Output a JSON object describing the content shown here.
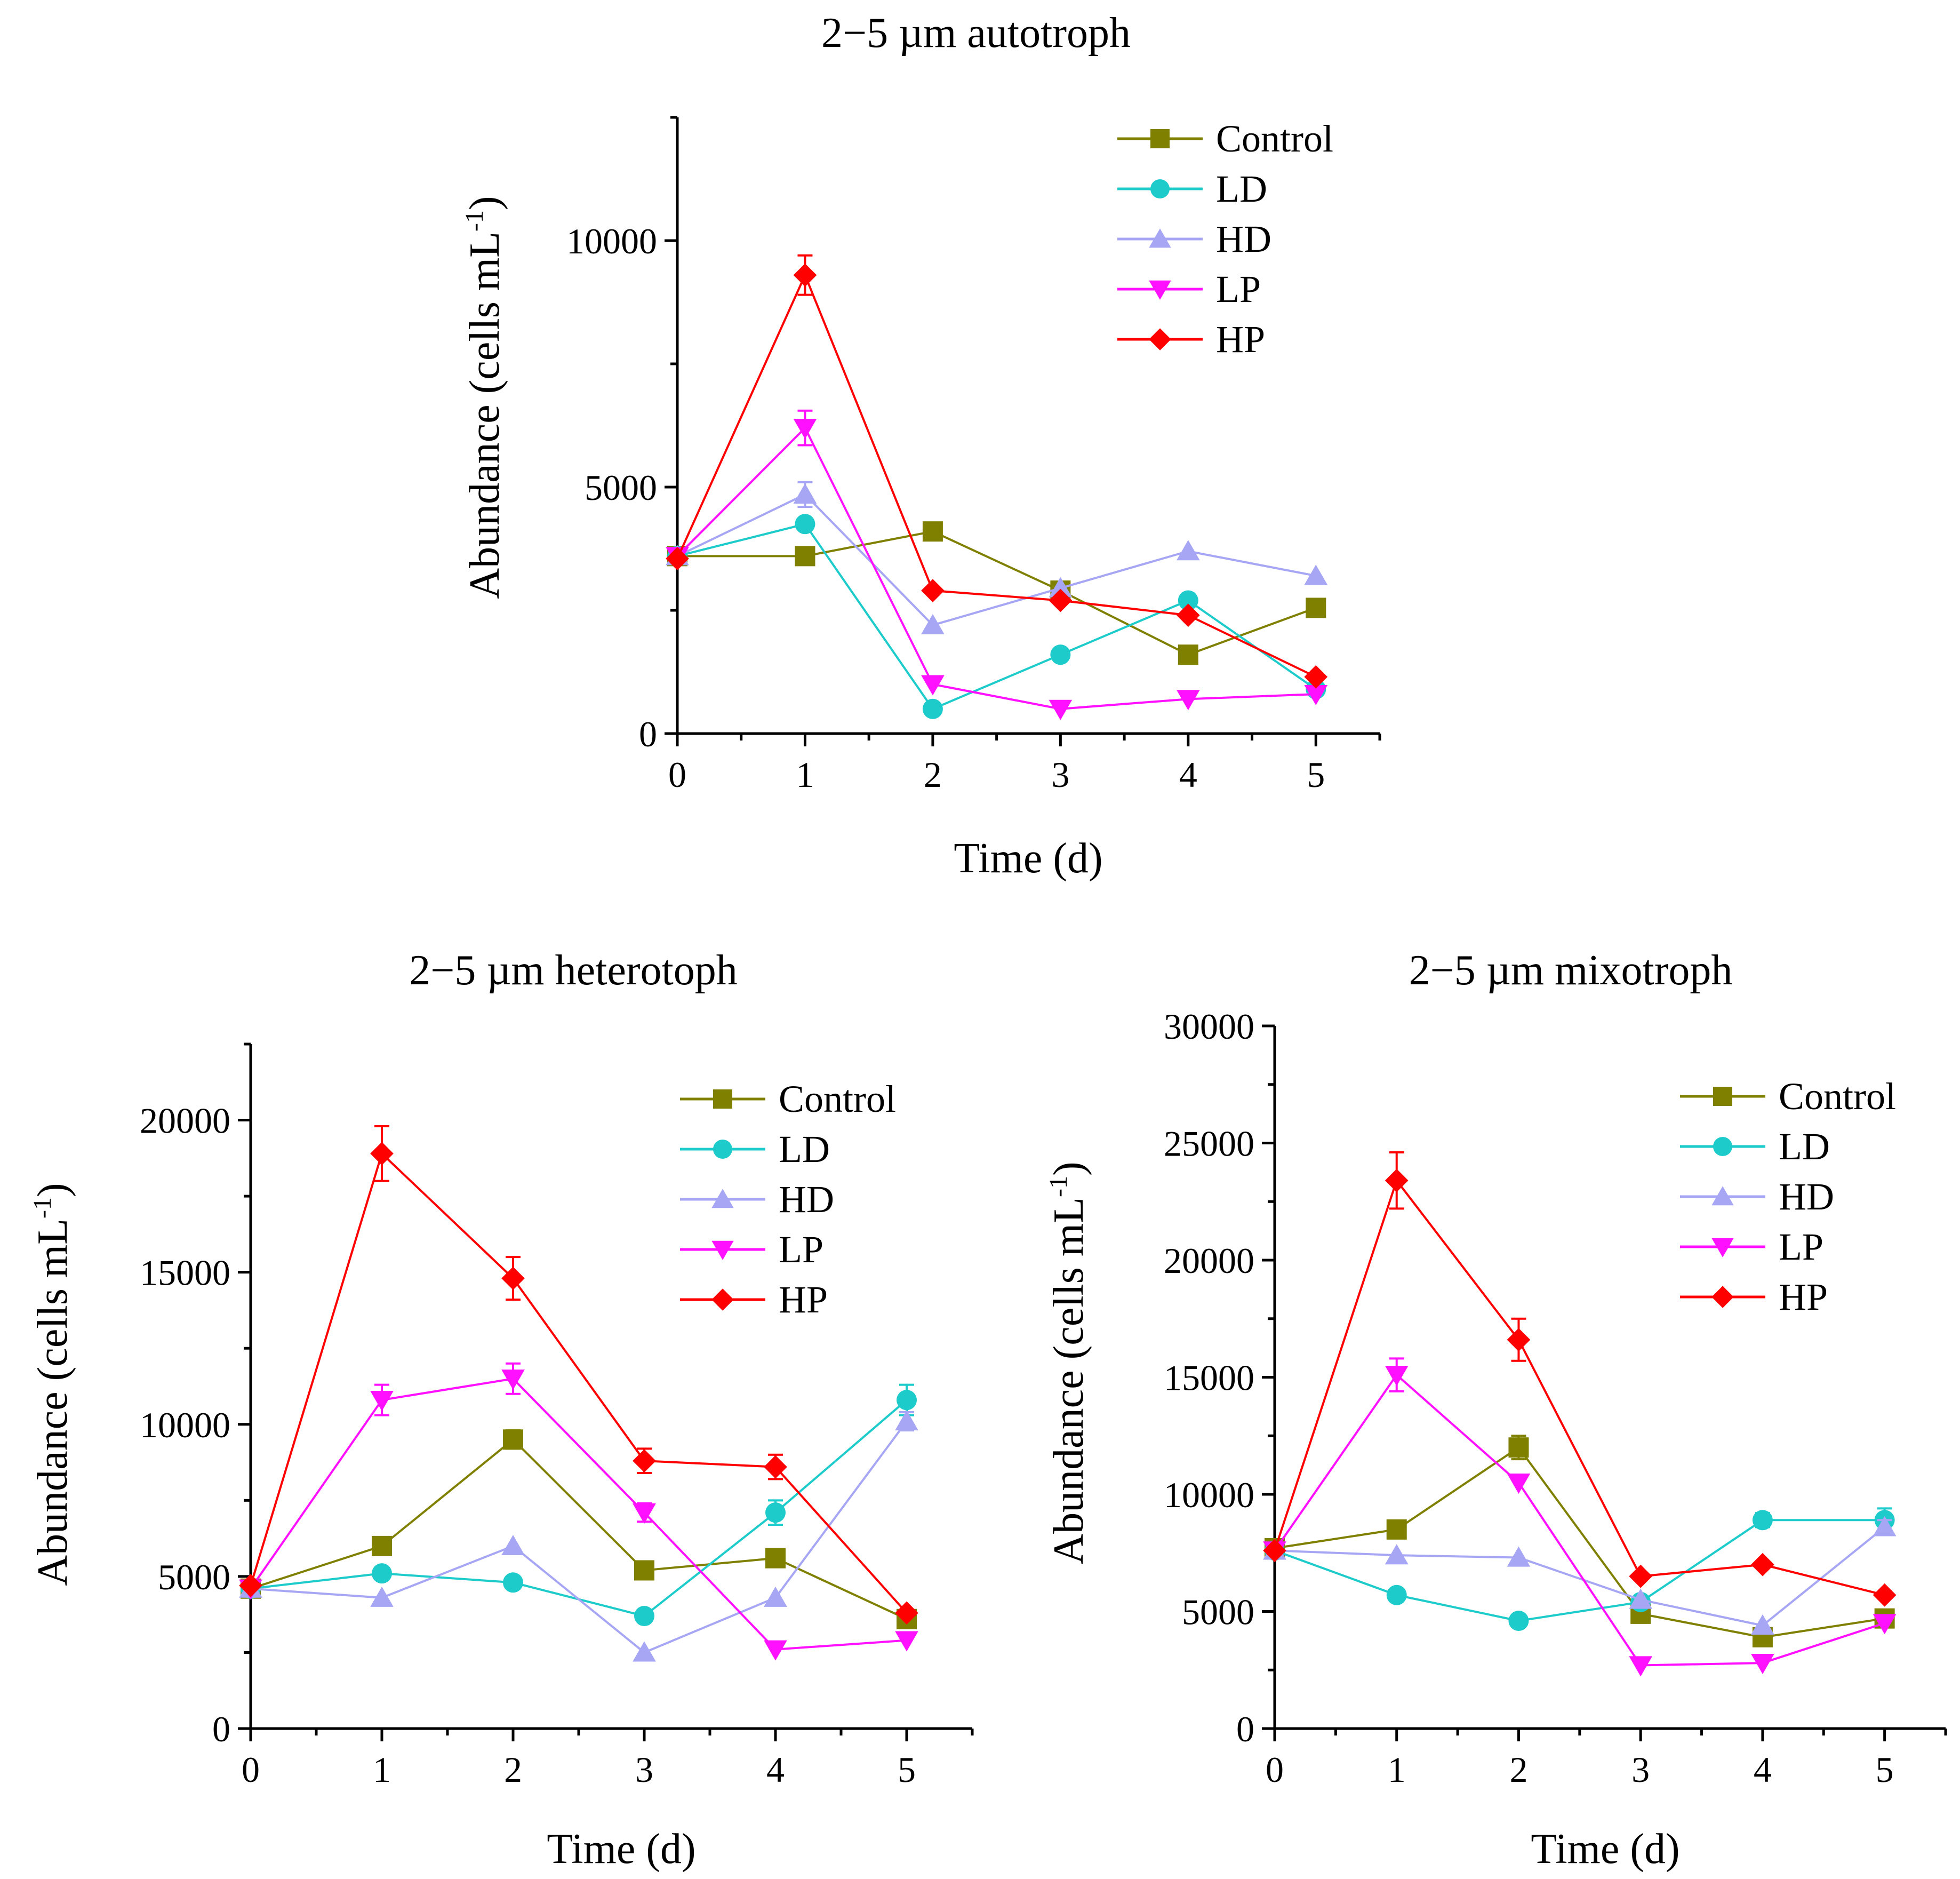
{
  "chart_data": [
    {
      "type": "line",
      "title": "2−5 µm autotroph",
      "xlabel": "Time (d)",
      "ylabel_main": "Abundance (cells mL",
      "ylabel_sup": "-1",
      "ylabel_close": ")",
      "x": [
        0,
        1,
        2,
        3,
        4,
        5
      ],
      "xlim": [
        0,
        5.5
      ],
      "ylim": [
        0,
        12500
      ],
      "yticks": [
        0,
        5000,
        10000
      ],
      "legend_position": "top-right",
      "series": [
        {
          "name": "Control",
          "color": "#808000",
          "marker": "square",
          "values": [
            3600,
            3600,
            4100,
            2900,
            1600,
            2550
          ],
          "errors": [
            0,
            0,
            0,
            0,
            0,
            0
          ]
        },
        {
          "name": "LD",
          "color": "#1ECBCB",
          "marker": "circle",
          "values": [
            3600,
            4250,
            500,
            1600,
            2700,
            900
          ],
          "errors": [
            0,
            0,
            0,
            0,
            0,
            0
          ]
        },
        {
          "name": "HD",
          "color": "#A6A6F4",
          "marker": "triangle-up",
          "values": [
            3600,
            4850,
            2200,
            2950,
            3700,
            3200
          ],
          "errors": [
            0,
            250,
            0,
            0,
            0,
            0
          ]
        },
        {
          "name": "LP",
          "color": "#FF10FF",
          "marker": "triangle-down",
          "values": [
            3600,
            6200,
            1000,
            500,
            700,
            800
          ],
          "errors": [
            0,
            350,
            0,
            0,
            0,
            0
          ]
        },
        {
          "name": "HP",
          "color": "#FF0000",
          "marker": "diamond",
          "values": [
            3550,
            9300,
            2900,
            2700,
            2400,
            1150
          ],
          "errors": [
            0,
            400,
            0,
            0,
            0,
            0
          ]
        }
      ]
    },
    {
      "type": "line",
      "title": "2−5 µm heterotoph",
      "xlabel": "Time (d)",
      "ylabel_main": "Abundance (cells mL",
      "ylabel_sup": "-1",
      "ylabel_close": ")",
      "x": [
        0,
        1,
        2,
        3,
        4,
        5
      ],
      "xlim": [
        0,
        5.5
      ],
      "ylim": [
        0,
        22500
      ],
      "yticks": [
        0,
        5000,
        10000,
        15000,
        20000
      ],
      "legend_position": "top-right",
      "series": [
        {
          "name": "Control",
          "color": "#808000",
          "marker": "square",
          "values": [
            4600,
            6000,
            9500,
            5200,
            5600,
            3600
          ],
          "errors": [
            0,
            0,
            300,
            0,
            0,
            0
          ]
        },
        {
          "name": "LD",
          "color": "#1ECBCB",
          "marker": "circle",
          "values": [
            4600,
            5100,
            4800,
            3700,
            7100,
            10800
          ],
          "errors": [
            0,
            0,
            0,
            0,
            400,
            500
          ]
        },
        {
          "name": "HD",
          "color": "#A6A6F4",
          "marker": "triangle-up",
          "values": [
            4600,
            4300,
            6000,
            2500,
            4300,
            10100
          ],
          "errors": [
            0,
            0,
            0,
            0,
            0,
            300
          ]
        },
        {
          "name": "LP",
          "color": "#FF10FF",
          "marker": "triangle-down",
          "values": [
            4600,
            10800,
            11500,
            7100,
            2600,
            2900
          ],
          "errors": [
            0,
            500,
            500,
            300,
            0,
            0
          ]
        },
        {
          "name": "HP",
          "color": "#FF0000",
          "marker": "diamond",
          "values": [
            4700,
            18900,
            14800,
            8800,
            8600,
            3800
          ],
          "errors": [
            0,
            900,
            700,
            400,
            400,
            0
          ]
        }
      ]
    },
    {
      "type": "line",
      "title": "2−5 µm mixotroph",
      "xlabel": "Time (d)",
      "ylabel_main": "Abundance (cells mL",
      "ylabel_sup": "-1",
      "ylabel_close": ")",
      "x": [
        0,
        1,
        2,
        3,
        4,
        5
      ],
      "xlim": [
        0,
        5.5
      ],
      "ylim": [
        0,
        30000
      ],
      "yticks": [
        0,
        5000,
        10000,
        15000,
        20000,
        25000,
        30000
      ],
      "legend_position": "top-right",
      "series": [
        {
          "name": "Control",
          "color": "#808000",
          "marker": "square",
          "values": [
            7700,
            8500,
            12000,
            4900,
            3900,
            4700
          ],
          "errors": [
            0,
            0,
            500,
            0,
            0,
            0
          ]
        },
        {
          "name": "LD",
          "color": "#1ECBCB",
          "marker": "circle",
          "values": [
            7600,
            5700,
            4600,
            5400,
            8900,
            8900
          ],
          "errors": [
            0,
            0,
            0,
            0,
            300,
            500
          ]
        },
        {
          "name": "HD",
          "color": "#A6A6F4",
          "marker": "triangle-up",
          "values": [
            7600,
            7400,
            7300,
            5500,
            4400,
            8600
          ],
          "errors": [
            0,
            0,
            0,
            0,
            0,
            300
          ]
        },
        {
          "name": "LP",
          "color": "#FF10FF",
          "marker": "triangle-down",
          "values": [
            7600,
            15100,
            10500,
            2700,
            2800,
            4500
          ],
          "errors": [
            0,
            700,
            0,
            0,
            0,
            0
          ]
        },
        {
          "name": "HP",
          "color": "#FF0000",
          "marker": "diamond",
          "values": [
            7600,
            23400,
            16600,
            6500,
            7000,
            5700
          ],
          "errors": [
            0,
            1200,
            900,
            0,
            0,
            0
          ]
        }
      ]
    }
  ]
}
